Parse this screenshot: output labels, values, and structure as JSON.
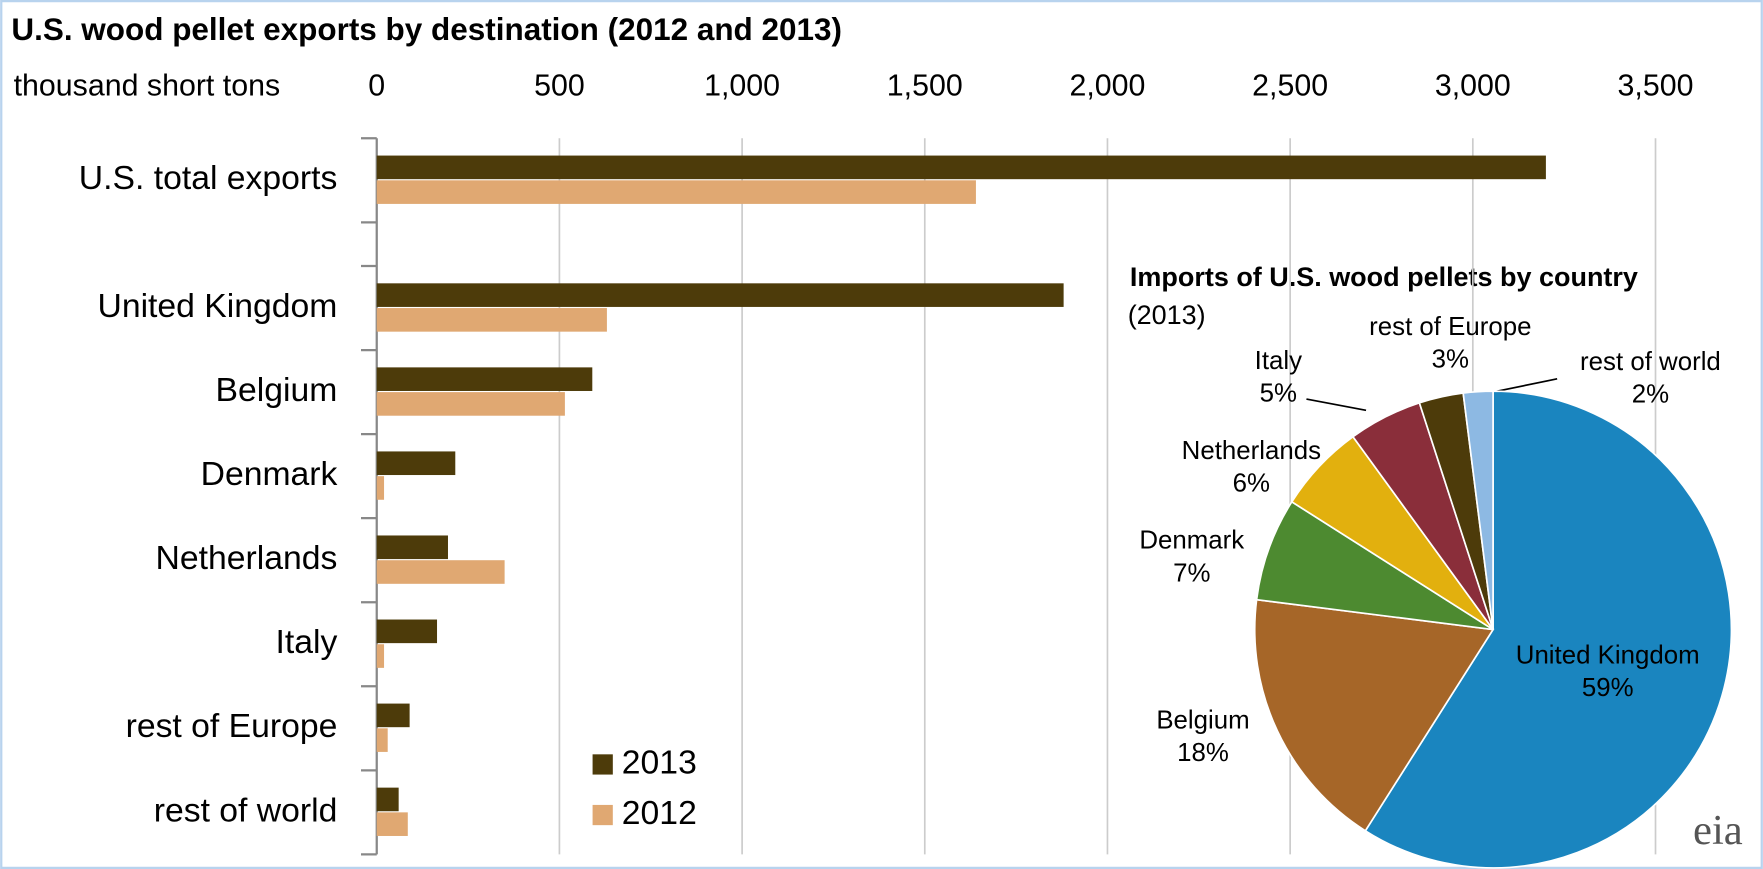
{
  "chart_data": [
    {
      "type": "bar",
      "orientation": "horizontal",
      "title": "U.S. wood pellet exports by destination (2012 and 2013)",
      "x_label": "thousand short tons",
      "categories": [
        "U.S. total exports",
        null,
        "United Kingdom",
        "Belgium",
        "Denmark",
        "Netherlands",
        "Italy",
        "rest of Europe",
        "rest of world"
      ],
      "series": [
        {
          "name": "2013",
          "color": "#4d3b0a",
          "values": [
            3200,
            null,
            1880,
            590,
            215,
            195,
            165,
            90,
            60
          ]
        },
        {
          "name": "2012",
          "color": "#e0a872",
          "values": [
            1640,
            null,
            630,
            515,
            20,
            350,
            20,
            30,
            85
          ]
        }
      ],
      "xlim": [
        0,
        3700
      ],
      "xticks": [
        0,
        500,
        {
          "value": 1000,
          "label": "1,000"
        },
        {
          "value": 1500,
          "label": "1,500"
        },
        {
          "value": 2000,
          "label": "2,000"
        },
        {
          "value": 2500,
          "label": "2,500"
        },
        {
          "value": 3000,
          "label": "3,000"
        },
        {
          "value": 3500,
          "label": "3,500"
        }
      ],
      "grid": true,
      "legend": "bottom"
    },
    {
      "type": "pie",
      "title": "Imports of U.S. wood pellets by country",
      "subtitle": "(2013)",
      "categories": [
        "United Kingdom",
        "Belgium",
        "Denmark",
        "Netherlands",
        "Italy",
        "rest of Europe",
        "rest of world"
      ],
      "values": [
        59,
        18,
        7,
        6,
        5,
        3,
        2
      ],
      "value_labels": [
        "59%",
        "18%",
        "7%",
        "6%",
        "5%",
        "3%",
        "2%"
      ],
      "colors": [
        "#1a85bf",
        "#a66628",
        "#4d8a30",
        "#e2b00e",
        "#8a2e3a",
        "#4d3b0a",
        "#8db9e3"
      ],
      "logo": "eia"
    }
  ]
}
